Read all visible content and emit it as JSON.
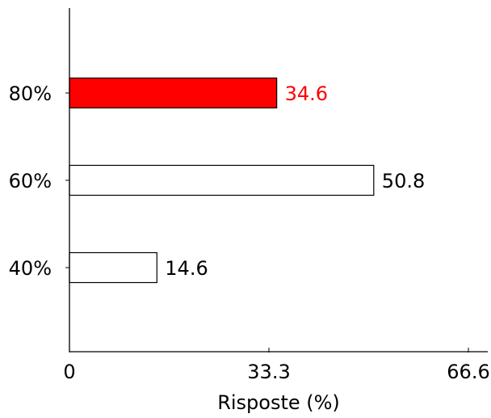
{
  "chart_data": {
    "type": "bar",
    "orientation": "horizontal",
    "categories": [
      "40%",
      "60%",
      "80%"
    ],
    "values": [
      14.6,
      50.8,
      34.6
    ],
    "value_labels": [
      "14.6",
      "50.8",
      "34.6"
    ],
    "highlight": "80%",
    "title": "",
    "xlabel": "Risposte (%)",
    "ylabel": "",
    "xlim": [
      0,
      66.6
    ],
    "x_ticks": [
      "0",
      "33.3",
      "66.6"
    ],
    "grid": false,
    "colors": {
      "highlight_fill": "#ff0000",
      "highlight_label": "#ff0000",
      "default_fill": "#ffffff",
      "default_label": "#000000",
      "outline": "#000000"
    }
  }
}
